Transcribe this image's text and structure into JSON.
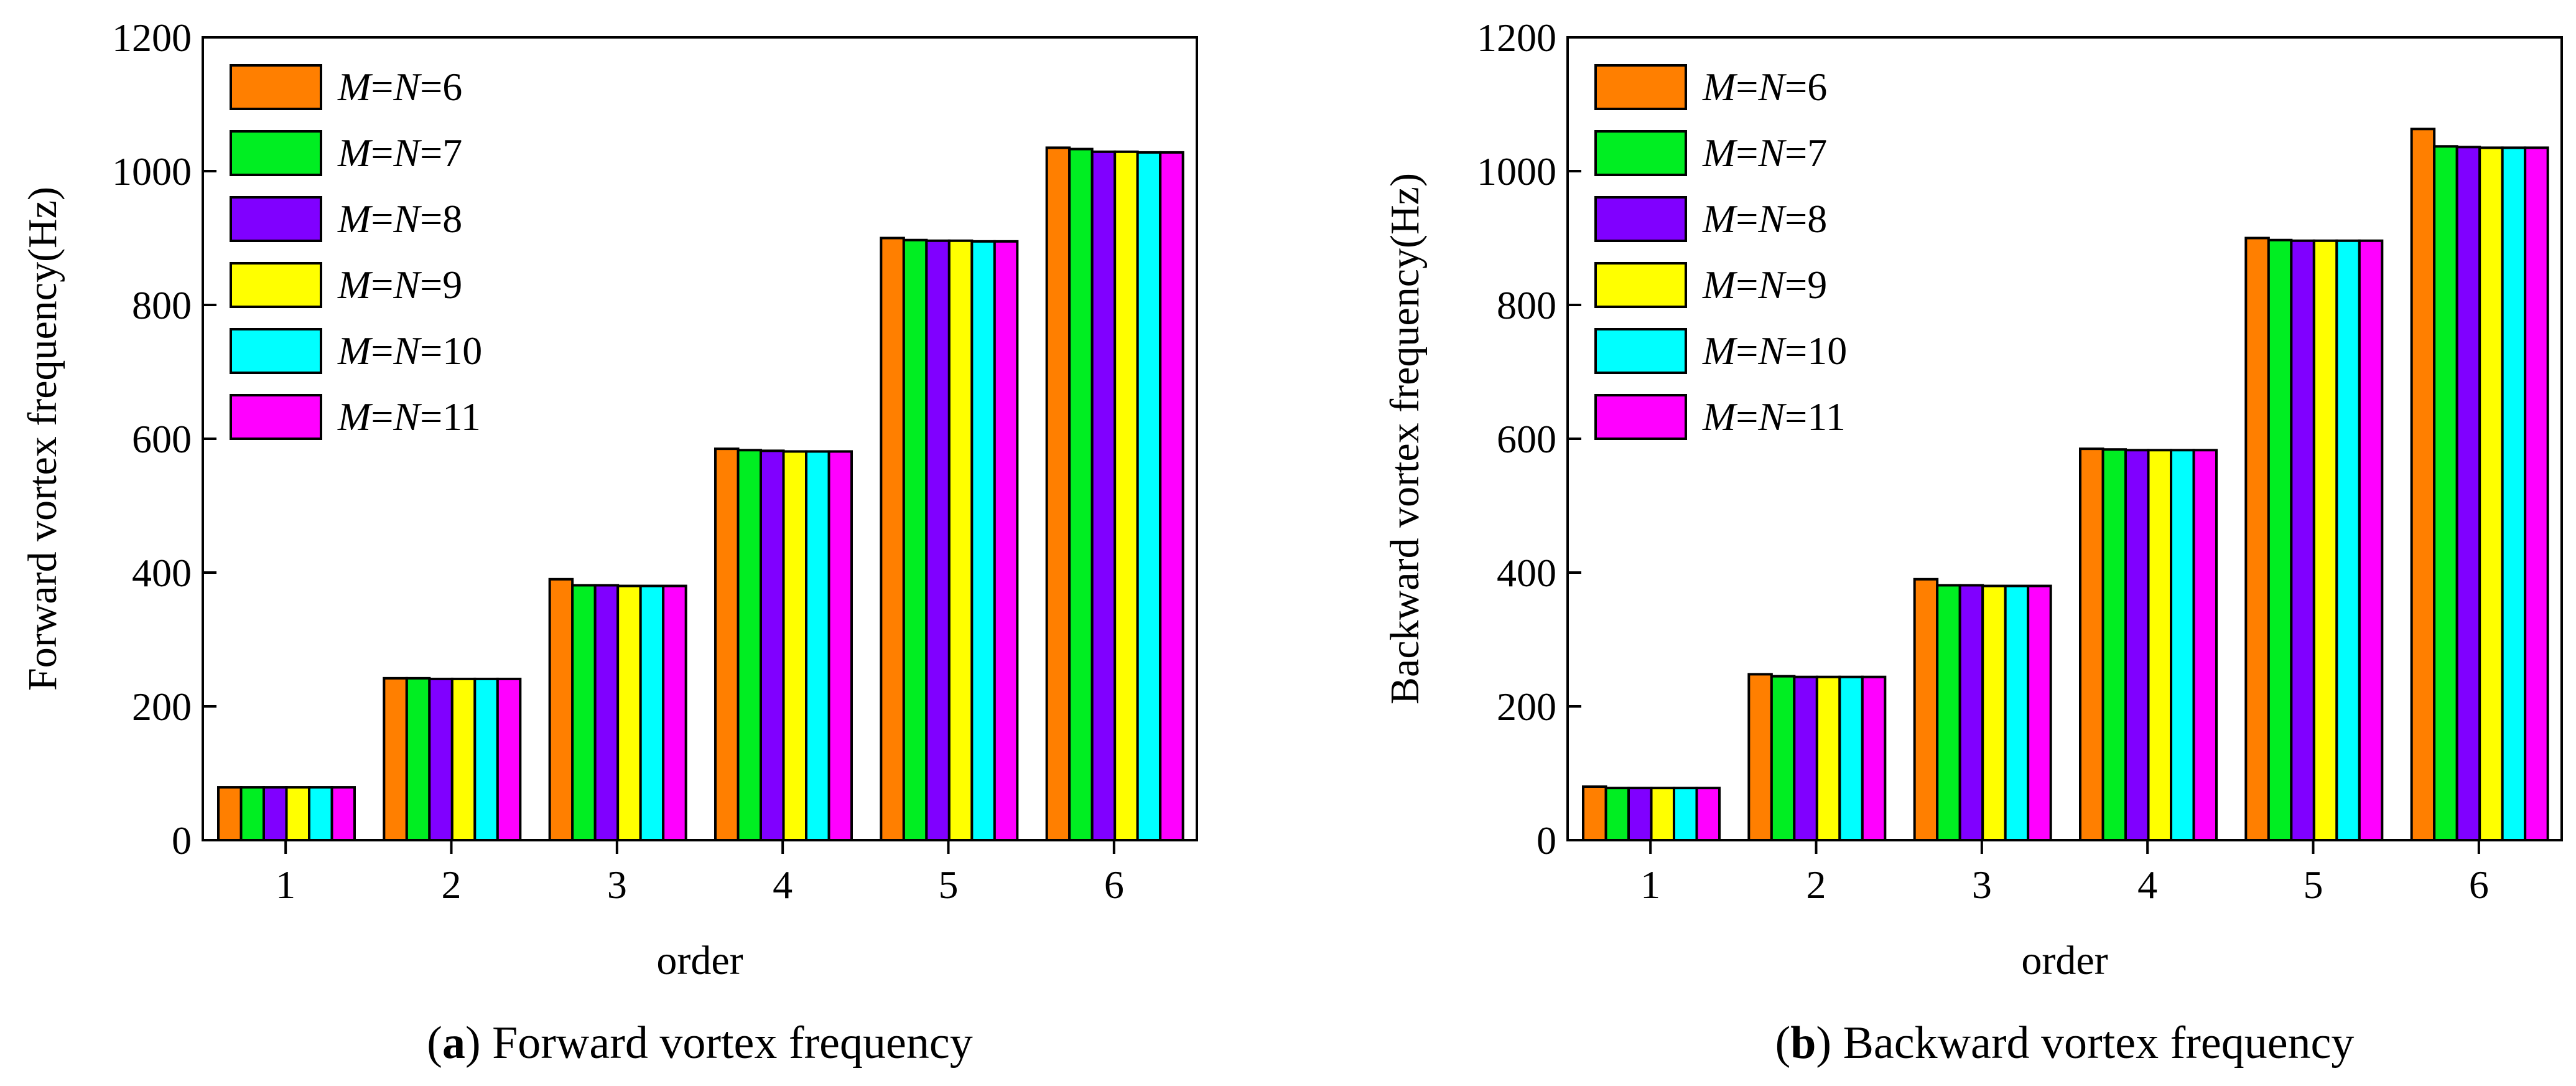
{
  "chart_data": [
    {
      "type": "bar",
      "title": "",
      "caption": {
        "letter": "a",
        "open": "(",
        "close": ")",
        "text": " Forward vortex frequency"
      },
      "xlabel": "order",
      "ylabel": "Forward vortex frequency(Hz)",
      "ylim": [
        0,
        1200
      ],
      "yticks": [
        0,
        200,
        400,
        600,
        800,
        1000,
        1200
      ],
      "categories": [
        "1",
        "2",
        "3",
        "4",
        "5",
        "6"
      ],
      "legend_position": "top-left",
      "series": [
        {
          "name": "M=N=6",
          "values": [
            79,
            242,
            390,
            585,
            900,
            1035
          ]
        },
        {
          "name": "M=N=7",
          "values": [
            79,
            242,
            381,
            583,
            897,
            1033
          ]
        },
        {
          "name": "M=N=8",
          "values": [
            79,
            241,
            381,
            582,
            896,
            1029
          ]
        },
        {
          "name": "M=N=9",
          "values": [
            79,
            241,
            380,
            581,
            896,
            1029
          ]
        },
        {
          "name": "M=N=10",
          "values": [
            79,
            241,
            380,
            581,
            895,
            1028
          ]
        },
        {
          "name": "M=N=11",
          "values": [
            79,
            241,
            380,
            581,
            895,
            1028
          ]
        }
      ]
    },
    {
      "type": "bar",
      "title": "",
      "caption": {
        "letter": "b",
        "open": "(",
        "close": ")",
        "text": " Backward vortex frequency"
      },
      "xlabel": "order",
      "ylabel": "Backward vortex frequency(Hz)",
      "ylim": [
        0,
        1200
      ],
      "yticks": [
        0,
        200,
        400,
        600,
        800,
        1000,
        1200
      ],
      "categories": [
        "1",
        "2",
        "3",
        "4",
        "5",
        "6"
      ],
      "legend_position": "top-left",
      "series": [
        {
          "name": "M=N=6",
          "values": [
            80,
            248,
            390,
            585,
            900,
            1063
          ]
        },
        {
          "name": "M=N=7",
          "values": [
            78,
            245,
            381,
            584,
            897,
            1037
          ]
        },
        {
          "name": "M=N=8",
          "values": [
            78,
            244,
            381,
            583,
            896,
            1036
          ]
        },
        {
          "name": "M=N=9",
          "values": [
            78,
            244,
            380,
            583,
            896,
            1035
          ]
        },
        {
          "name": "M=N=10",
          "values": [
            78,
            244,
            380,
            583,
            896,
            1035
          ]
        },
        {
          "name": "M=N=11",
          "values": [
            78,
            244,
            380,
            583,
            896,
            1035
          ]
        }
      ]
    }
  ],
  "legend": [
    {
      "pre": "M",
      "eq1": "=",
      "mid": "N",
      "eq2": "=",
      "num": "6"
    },
    {
      "pre": "M",
      "eq1": "=",
      "mid": "N",
      "eq2": "=",
      "num": "7"
    },
    {
      "pre": "M",
      "eq1": "=",
      "mid": "N",
      "eq2": "=",
      "num": "8"
    },
    {
      "pre": "M",
      "eq1": "=",
      "mid": "N",
      "eq2": "=",
      "num": "9"
    },
    {
      "pre": "M",
      "eq1": "=",
      "mid": "N",
      "eq2": "=",
      "num": "10"
    },
    {
      "pre": "M",
      "eq1": "=",
      "mid": "N",
      "eq2": "=",
      "num": "11"
    }
  ],
  "colors": [
    "#ff7f00",
    "#00ee22",
    "#8000ff",
    "#ffff00",
    "#00ffff",
    "#ff00ff"
  ]
}
